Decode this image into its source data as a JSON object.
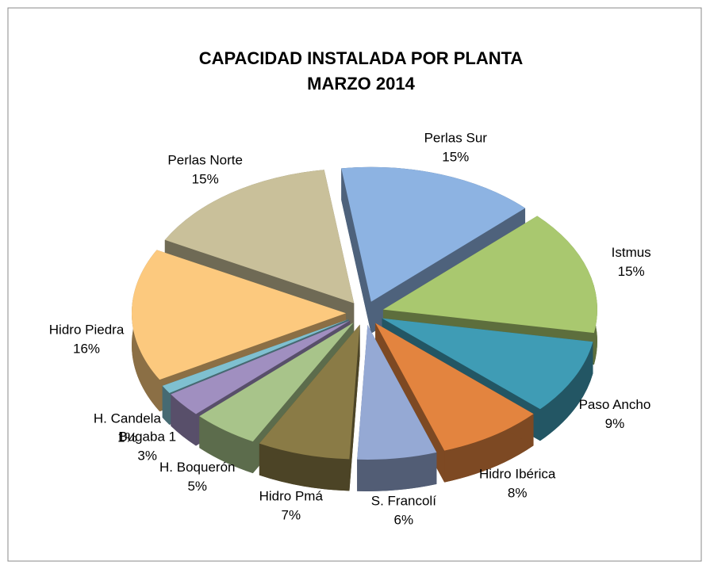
{
  "chart_data": {
    "type": "pie",
    "title": [
      "CAPACIDAD INSTALADA  POR  PLANTA",
      "MARZO  2014"
    ],
    "categories": [
      "Perlas Sur",
      "Istmus",
      "Paso Ancho",
      "Hidro Ibérica",
      "S. Francolí",
      "Hidro Pmá",
      "H. Boquerón",
      "Bugaba 1",
      "H. Candela",
      "Hidro Piedra",
      "Perlas Norte"
    ],
    "values": [
      15,
      15,
      9,
      8,
      6,
      7,
      5,
      3,
      1,
      16,
      15
    ],
    "value_labels": [
      "15%",
      "15%",
      "9%",
      "8%",
      "6%",
      "7%",
      "5%",
      "3%",
      "1%",
      "16%",
      "15%"
    ],
    "colors": [
      "#8db3e2",
      "#a9c86f",
      "#3f9cb5",
      "#e3843f",
      "#95a9d4",
      "#8a7b46",
      "#a8c48a",
      "#a08fc0",
      "#7fc0d0",
      "#fcc97e",
      "#c9c09a"
    ]
  }
}
